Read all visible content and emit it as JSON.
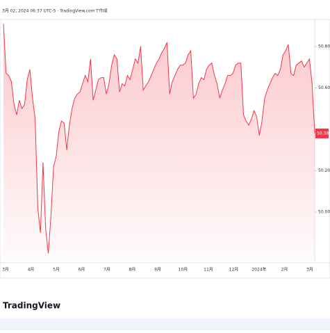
{
  "header": {
    "caption": "3月 02, 2024 06:37 UTC-5 · TradingView.comで作成"
  },
  "chart_data": {
    "type": "area",
    "color": "#f23645",
    "values": [
      50.91,
      50.67,
      50.66,
      50.63,
      50.52,
      50.47,
      50.54,
      50.5,
      50.52,
      50.64,
      50.69,
      50.55,
      50.45,
      50.02,
      49.9,
      50.24,
      49.92,
      49.8,
      49.98,
      50.22,
      50.27,
      50.39,
      50.44,
      50.43,
      50.3,
      50.42,
      50.5,
      50.55,
      50.57,
      50.58,
      50.62,
      50.66,
      50.63,
      50.74,
      50.54,
      50.59,
      50.64,
      50.65,
      50.65,
      50.57,
      50.62,
      50.71,
      50.76,
      50.74,
      50.58,
      50.62,
      50.61,
      50.66,
      50.64,
      50.69,
      50.74,
      50.72,
      50.8,
      50.59,
      50.61,
      50.63,
      50.66,
      50.69,
      50.72,
      50.74,
      50.77,
      50.79,
      50.82,
      50.57,
      50.63,
      50.66,
      50.69,
      50.71,
      50.71,
      50.72,
      50.76,
      50.78,
      50.55,
      50.57,
      50.62,
      50.65,
      50.64,
      50.69,
      50.71,
      50.72,
      50.66,
      50.62,
      50.55,
      50.59,
      50.62,
      50.66,
      50.66,
      50.67,
      50.71,
      50.72,
      50.72,
      50.47,
      50.44,
      50.42,
      50.45,
      50.49,
      50.46,
      50.37,
      50.44,
      50.55,
      50.59,
      50.62,
      50.65,
      50.67,
      50.66,
      50.69,
      50.76,
      50.78,
      50.81,
      50.67,
      50.66,
      50.71,
      50.72,
      50.73,
      50.7,
      50.72,
      50.74,
      50.62,
      50.38
    ],
    "ylim": [
      49.765,
      50.924
    ],
    "yticks": [
      {
        "value": 50.0,
        "label": "50.00"
      },
      {
        "value": 50.2,
        "label": "50.20"
      },
      {
        "value": 50.6,
        "label": "50.60"
      },
      {
        "value": 50.8,
        "label": "50.80"
      }
    ],
    "current_price": 50.38,
    "x_labels": [
      "3月",
      "4月",
      "5月",
      "6月",
      "7月",
      "8月",
      "9月",
      "10月",
      "11月",
      "12月",
      "2024年",
      "2月",
      "3月"
    ]
  },
  "footer": {
    "logo": "TradingView"
  }
}
